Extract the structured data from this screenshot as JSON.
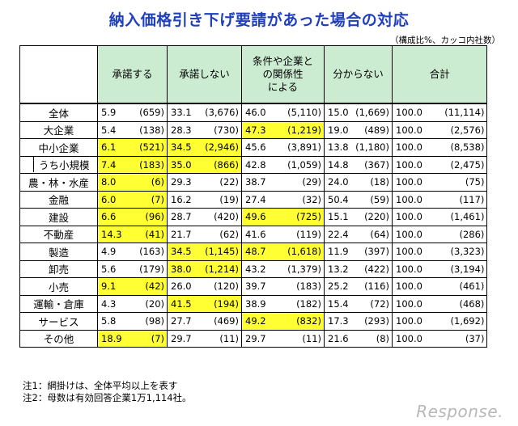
{
  "title": "納入価格引き下げ要請があった場合の対応",
  "unit_note": "（構成比%、カッコ内社数）",
  "headers": [
    "承諾する",
    "承諾しない",
    "条件や企業との関係性による",
    "分からない",
    "合計"
  ],
  "rows": [
    {
      "label": "全体",
      "sub": false,
      "cells": [
        [
          "5.9",
          "(659)",
          false
        ],
        [
          "33.1",
          "(3,676)",
          false
        ],
        [
          "46.0",
          "(5,110)",
          false
        ],
        [
          "15.0",
          "(1,669)",
          false
        ],
        [
          "100.0",
          "(11,114)",
          false
        ]
      ]
    },
    {
      "label": "大企業",
      "sub": false,
      "cells": [
        [
          "5.4",
          "(138)",
          false
        ],
        [
          "28.3",
          "(730)",
          false
        ],
        [
          "47.3",
          "(1,219)",
          true
        ],
        [
          "19.0",
          "(489)",
          false
        ],
        [
          "100.0",
          "(2,576)",
          false
        ]
      ]
    },
    {
      "label": "中小企業",
      "sub": false,
      "cells": [
        [
          "6.1",
          "(521)",
          true
        ],
        [
          "34.5",
          "(2,946)",
          true
        ],
        [
          "45.6",
          "(3,891)",
          false
        ],
        [
          "13.8",
          "(1,180)",
          false
        ],
        [
          "100.0",
          "(8,538)",
          false
        ]
      ]
    },
    {
      "label": "うち小規模",
      "sub": true,
      "cells": [
        [
          "7.4",
          "(183)",
          true
        ],
        [
          "35.0",
          "(866)",
          true
        ],
        [
          "42.8",
          "(1,059)",
          false
        ],
        [
          "14.8",
          "(367)",
          false
        ],
        [
          "100.0",
          "(2,475)",
          false
        ]
      ]
    },
    {
      "label": "農・林・水産",
      "sub": false,
      "cells": [
        [
          "8.0",
          "(6)",
          true
        ],
        [
          "29.3",
          "(22)",
          false
        ],
        [
          "38.7",
          "(29)",
          false
        ],
        [
          "24.0",
          "(18)",
          false
        ],
        [
          "100.0",
          "(75)",
          false
        ]
      ]
    },
    {
      "label": "金融",
      "sub": false,
      "cells": [
        [
          "6.0",
          "(7)",
          true
        ],
        [
          "16.2",
          "(19)",
          false
        ],
        [
          "27.4",
          "(32)",
          false
        ],
        [
          "50.4",
          "(59)",
          false
        ],
        [
          "100.0",
          "(117)",
          false
        ]
      ]
    },
    {
      "label": "建設",
      "sub": false,
      "cells": [
        [
          "6.6",
          "(96)",
          true
        ],
        [
          "28.7",
          "(420)",
          false
        ],
        [
          "49.6",
          "(725)",
          true
        ],
        [
          "15.1",
          "(220)",
          false
        ],
        [
          "100.0",
          "(1,461)",
          false
        ]
      ]
    },
    {
      "label": "不動産",
      "sub": false,
      "cells": [
        [
          "14.3",
          "(41)",
          true
        ],
        [
          "21.7",
          "(62)",
          false
        ],
        [
          "41.6",
          "(119)",
          false
        ],
        [
          "22.4",
          "(64)",
          false
        ],
        [
          "100.0",
          "(286)",
          false
        ]
      ]
    },
    {
      "label": "製造",
      "sub": false,
      "cells": [
        [
          "4.9",
          "(163)",
          false
        ],
        [
          "34.5",
          "(1,145)",
          true
        ],
        [
          "48.7",
          "(1,618)",
          true
        ],
        [
          "11.9",
          "(397)",
          false
        ],
        [
          "100.0",
          "(3,323)",
          false
        ]
      ]
    },
    {
      "label": "卸売",
      "sub": false,
      "cells": [
        [
          "5.6",
          "(179)",
          false
        ],
        [
          "38.0",
          "(1,214)",
          true
        ],
        [
          "43.2",
          "(1,379)",
          false
        ],
        [
          "13.2",
          "(422)",
          false
        ],
        [
          "100.0",
          "(3,194)",
          false
        ]
      ]
    },
    {
      "label": "小売",
      "sub": false,
      "cells": [
        [
          "9.1",
          "(42)",
          true
        ],
        [
          "26.0",
          "(120)",
          false
        ],
        [
          "39.7",
          "(183)",
          false
        ],
        [
          "25.2",
          "(116)",
          false
        ],
        [
          "100.0",
          "(461)",
          false
        ]
      ]
    },
    {
      "label": "運輸・倉庫",
      "sub": false,
      "cells": [
        [
          "4.3",
          "(20)",
          false
        ],
        [
          "41.5",
          "(194)",
          true
        ],
        [
          "38.9",
          "(182)",
          false
        ],
        [
          "15.4",
          "(72)",
          false
        ],
        [
          "100.0",
          "(468)",
          false
        ]
      ]
    },
    {
      "label": "サービス",
      "sub": false,
      "cells": [
        [
          "5.8",
          "(98)",
          false
        ],
        [
          "27.7",
          "(469)",
          false
        ],
        [
          "49.2",
          "(832)",
          true
        ],
        [
          "17.3",
          "(293)",
          false
        ],
        [
          "100.0",
          "(1,692)",
          false
        ]
      ]
    },
    {
      "label": "その他",
      "sub": false,
      "cells": [
        [
          "18.9",
          "(7)",
          true
        ],
        [
          "29.7",
          "(11)",
          false
        ],
        [
          "29.7",
          "(11)",
          false
        ],
        [
          "21.6",
          "(8)",
          false
        ],
        [
          "100.0",
          "(37)",
          false
        ]
      ]
    }
  ],
  "notes": [
    "注1：網掛けは、全体平均以上を表す",
    "注2：母数は有効回答企業1万1,114社。"
  ],
  "logo_text": "Response."
}
